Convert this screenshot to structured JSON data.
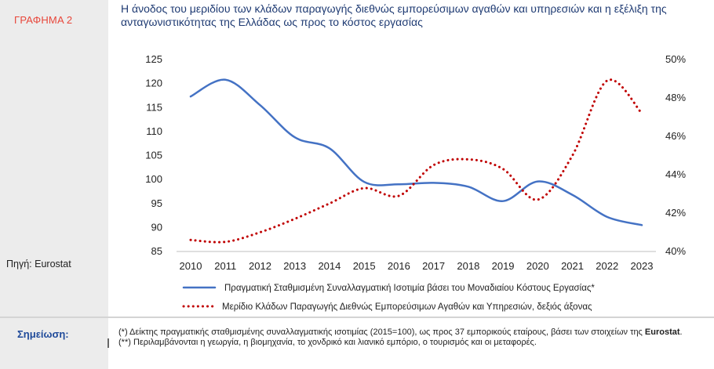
{
  "label": "ΓΡΑΦΗΜΑ 2",
  "source": "Πηγή: Eurostat",
  "title": "Η άνοδος του μεριδίου των κλάδων παραγωγής διεθνώς εμπορεύσιμων αγαθών και υπηρεσιών και η εξέλιξη της ανταγωνιστικότητας της Ελλάδας ως προς το κόστος εργασίας",
  "note_label": "Σημείωση:",
  "notes": {
    "n1_prefix": "(*) Δείκτης πραγματικής σταθμισμένης συναλλαγματικής ισοτιμίας (2015=100), ως προς 37 εμπορικούς εταίρους, βάσει των στοιχείων της ",
    "n1_bold": "Eurostat",
    "n1_suffix": ".",
    "n2": "(**) Περιλαμβάνονται η γεωργία, η βιομηχανία, το χονδρικό και λιανικό εμπόριο, ο τουρισμός και οι μεταφορές."
  },
  "chart_data": {
    "type": "line",
    "x": [
      "2010",
      "2011",
      "2012",
      "2013",
      "2014",
      "2015",
      "2016",
      "2017",
      "2018",
      "2019",
      "2020",
      "2021",
      "2022",
      "2023"
    ],
    "y_left": {
      "lim": [
        85,
        125
      ],
      "ticks": [
        "85",
        "90",
        "95",
        "100",
        "105",
        "110",
        "115",
        "120",
        "125"
      ]
    },
    "y_right": {
      "lim": [
        40,
        50
      ],
      "ticks": [
        "40%",
        "42%",
        "44%",
        "46%",
        "48%",
        "50%"
      ]
    },
    "series": [
      {
        "name": "Πραγματική Σταθμισμένη Συναλλαγματική Ισοτιμία βάσει του Μοναδιαίου Κόστους Εργασίας*",
        "axis": "left",
        "style": "solid",
        "color": "#4472c4",
        "values": [
          117.3,
          120.8,
          115.5,
          108.8,
          106.5,
          99.5,
          99.0,
          99.3,
          98.5,
          95.5,
          99.6,
          96.8,
          92.2,
          90.5
        ]
      },
      {
        "name": "Μερίδιο Κλάδων Παραγωγής Διεθνώς Εμπορεύσιμων Αγαθών και Υπηρεσιών, δεξιός άξονας",
        "axis": "right",
        "style": "dotted",
        "color": "#c00000",
        "values": [
          40.6,
          40.5,
          41.0,
          41.7,
          42.5,
          43.3,
          42.9,
          44.5,
          44.8,
          44.3,
          42.7,
          45.0,
          48.9,
          47.2
        ]
      }
    ]
  }
}
